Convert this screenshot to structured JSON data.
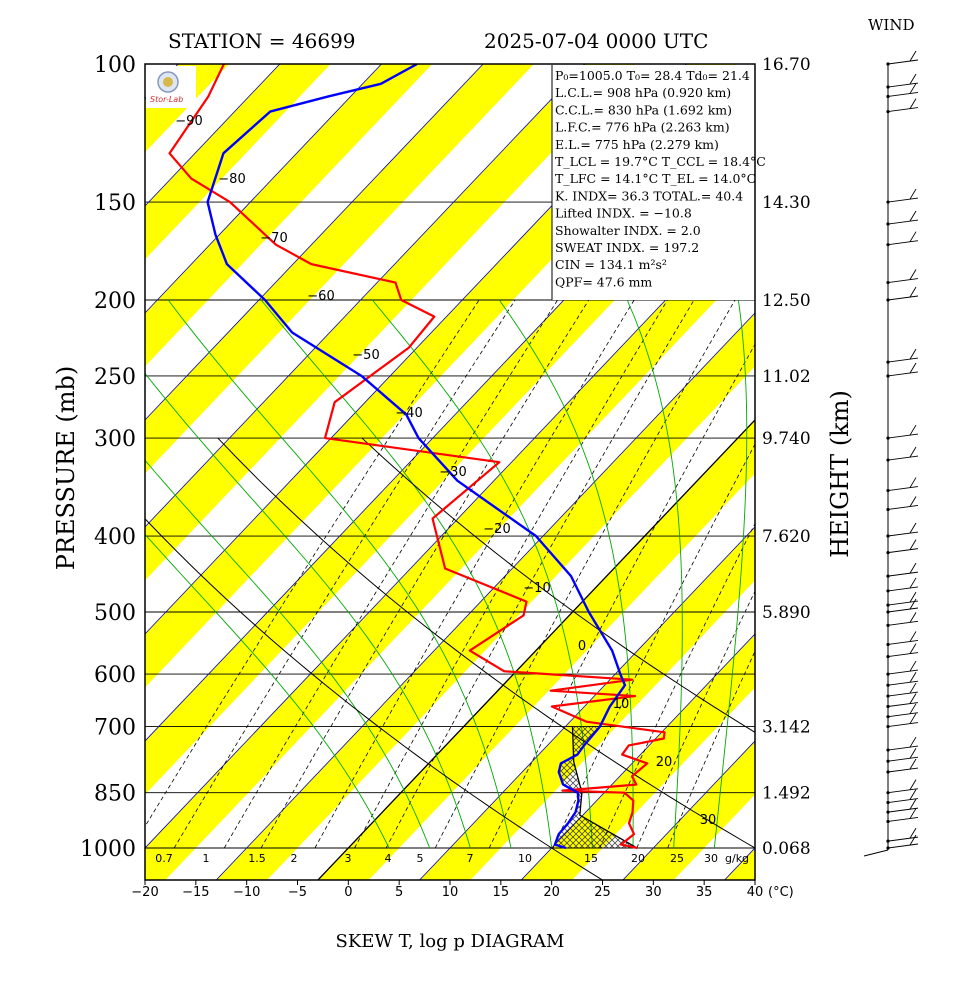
{
  "header": {
    "station": "STATION = 46699",
    "datetime": "2025-07-04 0000 UTC",
    "wind_title": "WIND",
    "footer": "SKEW T, log p DIAGRAM"
  },
  "axes": {
    "y_left_label": "PRESSURE (mb)",
    "y_right_label": "HEIGHT (km)",
    "x_unit": "(°C)",
    "mixing_unit": "g/kg"
  },
  "info_lines": [
    "P₀=1005.0  T₀= 28.4  Td₀= 21.4",
    "L.C.L.= 908 hPa (0.920 km)",
    "C.C.L.= 830 hPa (1.692 km)",
    "L.F.C.= 776 hPa (2.263 km)",
    "E.L.= 775 hPa (2.279 km)",
    "T_LCL = 19.7°C  T_CCL = 18.4°C",
    "T_LFC = 14.1°C  T_EL = 14.0°C",
    "K. INDX= 36.3  TOTAL.= 40.4",
    "Lifted INDX. = −10.8",
    "Showalter INDX. =    2.0",
    "SWEAT INDX. =  197.2",
    "CIN  =  134.1 m²s²",
    "QPF= 47.6 mm"
  ],
  "colors": {
    "yellow_band": "#ffff00",
    "isotherm": "#0000cc",
    "temperature": "#ff0000",
    "dewpoint": "#0000ff",
    "moist_adiabat": "#00aa00"
  },
  "chart_data": {
    "type": "skew-t log-p",
    "title": "SKEW T, log p DIAGRAM",
    "ylabel": "PRESSURE (mb)",
    "y2label": "HEIGHT (km)",
    "xlabel": "(°C)",
    "ylim": [
      1000,
      100
    ],
    "xlim": [
      -20,
      40
    ],
    "pressure_ticks": [
      100,
      150,
      200,
      250,
      300,
      400,
      500,
      600,
      700,
      850,
      1000
    ],
    "height_ticks": [
      {
        "p": 100,
        "label": "16.70"
      },
      {
        "p": 150,
        "label": "14.30"
      },
      {
        "p": 200,
        "label": "12.50"
      },
      {
        "p": 250,
        "label": "11.02"
      },
      {
        "p": 300,
        "label": "9.740"
      },
      {
        "p": 400,
        "label": "7.620"
      },
      {
        "p": 500,
        "label": "5.890"
      },
      {
        "p": 700,
        "label": "3.142"
      },
      {
        "p": 850,
        "label": "1.492"
      },
      {
        "p": 1000,
        "label": "0.068"
      }
    ],
    "temp_ticks": [
      -20,
      -15,
      -10,
      -5,
      0,
      5,
      10,
      15,
      20,
      25,
      30,
      35,
      40
    ],
    "isotherm_labels": [
      {
        "t": -90,
        "label": "−90"
      },
      {
        "t": -80,
        "label": "−80"
      },
      {
        "t": -70,
        "label": "−70"
      },
      {
        "t": -60,
        "label": "−60"
      },
      {
        "t": -50,
        "label": "−50"
      },
      {
        "t": -40,
        "label": "−40"
      },
      {
        "t": -30,
        "label": "−30"
      },
      {
        "t": -20,
        "label": "−20"
      },
      {
        "t": -10,
        "label": "−10"
      },
      {
        "t": 0,
        "label": "0"
      },
      {
        "t": 10,
        "label": "10"
      },
      {
        "t": 20,
        "label": "20"
      },
      {
        "t": 30,
        "label": "30"
      }
    ],
    "mixing_ratio_labels": [
      "0.7",
      "1",
      "1.5",
      "2",
      "3",
      "4",
      "5",
      "7",
      "10",
      "15",
      "20",
      "25",
      "30"
    ],
    "temperature": [
      [
        1000,
        28.4
      ],
      [
        990,
        26.5
      ],
      [
        960,
        26.8
      ],
      [
        930,
        25.3
      ],
      [
        900,
        24.6
      ],
      [
        870,
        23.6
      ],
      [
        850,
        22.0
      ],
      [
        845,
        15.7
      ],
      [
        830,
        22.4
      ],
      [
        810,
        21.2
      ],
      [
        780,
        21.5
      ],
      [
        760,
        18.2
      ],
      [
        740,
        18.0
      ],
      [
        725,
        20.8
      ],
      [
        712,
        20.3
      ],
      [
        690,
        11.6
      ],
      [
        660,
        6.8
      ],
      [
        640,
        14.0
      ],
      [
        630,
        5.2
      ],
      [
        610,
        12.2
      ],
      [
        595,
        -1.2
      ],
      [
        560,
        -6.5
      ],
      [
        505,
        -4.5
      ],
      [
        485,
        -5.5
      ],
      [
        440,
        -16.6
      ],
      [
        380,
        -22.5
      ],
      [
        322,
        -21.2
      ],
      [
        300,
        -40.6
      ],
      [
        270,
        -43.0
      ],
      [
        230,
        -40.8
      ],
      [
        210,
        -41.2
      ],
      [
        200,
        -46.0
      ],
      [
        190,
        -48.2
      ],
      [
        180,
        -58.2
      ],
      [
        170,
        -63.5
      ],
      [
        150,
        -72.0
      ],
      [
        140,
        -78.0
      ],
      [
        130,
        -82.5
      ],
      [
        110,
        -84.0
      ],
      [
        100,
        -85.5
      ]
    ],
    "dewpoint": [
      [
        1000,
        21.4
      ],
      [
        990,
        20.0
      ],
      [
        960,
        19.4
      ],
      [
        930,
        19.3
      ],
      [
        900,
        19.0
      ],
      [
        870,
        18.2
      ],
      [
        850,
        17.4
      ],
      [
        830,
        15.2
      ],
      [
        800,
        13.6
      ],
      [
        780,
        13.0
      ],
      [
        760,
        13.8
      ],
      [
        740,
        13.6
      ],
      [
        700,
        13.4
      ],
      [
        660,
        12.5
      ],
      [
        620,
        12.0
      ],
      [
        600,
        10.5
      ],
      [
        560,
        7.5
      ],
      [
        500,
        1.6
      ],
      [
        450,
        -3.5
      ],
      [
        400,
        -10.7
      ],
      [
        340,
        -23.6
      ],
      [
        300,
        -31.4
      ],
      [
        280,
        -34.8
      ],
      [
        250,
        -42.8
      ],
      [
        220,
        -53.7
      ],
      [
        200,
        -59.4
      ],
      [
        180,
        -66.5
      ],
      [
        165,
        -70.4
      ],
      [
        150,
        -74.2
      ],
      [
        130,
        -77.2
      ],
      [
        115,
        -76.5
      ],
      [
        110,
        -72.2
      ],
      [
        106,
        -68.2
      ],
      [
        100,
        -66.5
      ]
    ],
    "parcel": [
      [
        1000,
        28.4
      ],
      [
        908,
        19.7
      ],
      [
        850,
        17.8
      ],
      [
        776,
        14.1
      ],
      [
        700,
        10.7
      ]
    ],
    "wind_levels_hpa": [
      1000,
      980,
      925,
      900,
      875,
      850,
      800,
      775,
      750,
      700,
      680,
      660,
      640,
      620,
      600,
      570,
      550,
      520,
      500,
      490,
      470,
      450,
      420,
      400,
      370,
      350,
      320,
      300,
      250,
      240,
      200,
      190,
      170,
      160,
      150,
      115,
      110,
      107,
      100
    ]
  }
}
